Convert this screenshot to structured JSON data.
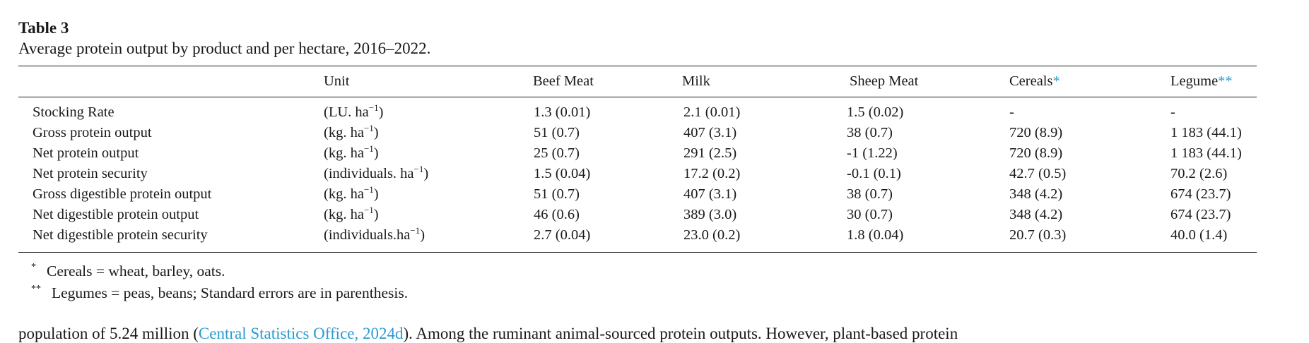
{
  "table": {
    "label": "Table 3",
    "caption": "Average protein output by product and per hectare, 2016–2022.",
    "columns": [
      "",
      "Unit",
      "Beef Meat",
      "Milk",
      "Sheep Meat",
      "Cereals",
      "Legume"
    ],
    "column_marks": {
      "cereals": "*",
      "legume": "**"
    },
    "rows": [
      {
        "label": "Stocking Rate",
        "unit_base": "(LU. ha",
        "unit_sup": "−1",
        "unit_end": ")",
        "values": [
          "1.3 (0.01)",
          "2.1 (0.01)",
          "1.5 (0.02)",
          "-",
          "-"
        ]
      },
      {
        "label": "Gross protein output",
        "unit_base": "(kg. ha",
        "unit_sup": "−1",
        "unit_end": ")",
        "values": [
          "51 (0.7)",
          "407 (3.1)",
          "38 (0.7)",
          "720 (8.9)",
          "1 183 (44.1)"
        ]
      },
      {
        "label": "Net protein output",
        "unit_base": "(kg. ha",
        "unit_sup": "−1",
        "unit_end": ")",
        "values": [
          "25 (0.7)",
          "291 (2.5)",
          "-1 (1.22)",
          "720 (8.9)",
          "1 183 (44.1)"
        ]
      },
      {
        "label": "Net protein security",
        "unit_base": "(individuals. ha",
        "unit_sup": "−1",
        "unit_end": ")",
        "values": [
          "1.5 (0.04)",
          "17.2 (0.2)",
          "-0.1 (0.1)",
          "42.7 (0.5)",
          "70.2 (2.6)"
        ]
      },
      {
        "label": "Gross digestible protein output",
        "unit_base": "(kg. ha",
        "unit_sup": "−1",
        "unit_end": ")",
        "values": [
          "51 (0.7)",
          "407 (3.1)",
          "38 (0.7)",
          "348 (4.2)",
          "674 (23.7)"
        ]
      },
      {
        "label": "Net digestible protein output",
        "unit_base": "(kg. ha",
        "unit_sup": "−1",
        "unit_end": ")",
        "values": [
          "46 (0.6)",
          "389 (3.0)",
          "30 (0.7)",
          "348 (4.2)",
          "674 (23.7)"
        ]
      },
      {
        "label": "Net digestible protein security",
        "unit_base": "(individuals.ha",
        "unit_sup": "−1",
        "unit_end": ")",
        "values": [
          "2.7 (0.04)",
          "23.0 (0.2)",
          "1.8 (0.04)",
          "20.7 (0.3)",
          "40.0 (1.4)"
        ]
      }
    ],
    "footnotes": [
      {
        "mark": "*",
        "text": "Cereals = wheat, barley, oats."
      },
      {
        "mark": "**",
        "text": "Legumes = peas, beans; Standard errors are in parenthesis."
      }
    ]
  },
  "body_text": {
    "before": "population of 5.24 million (",
    "link": "Central Statistics Office, 2024d",
    "after": "). Among the ruminant animal-sourced protein outputs. However, plant-based protein"
  }
}
